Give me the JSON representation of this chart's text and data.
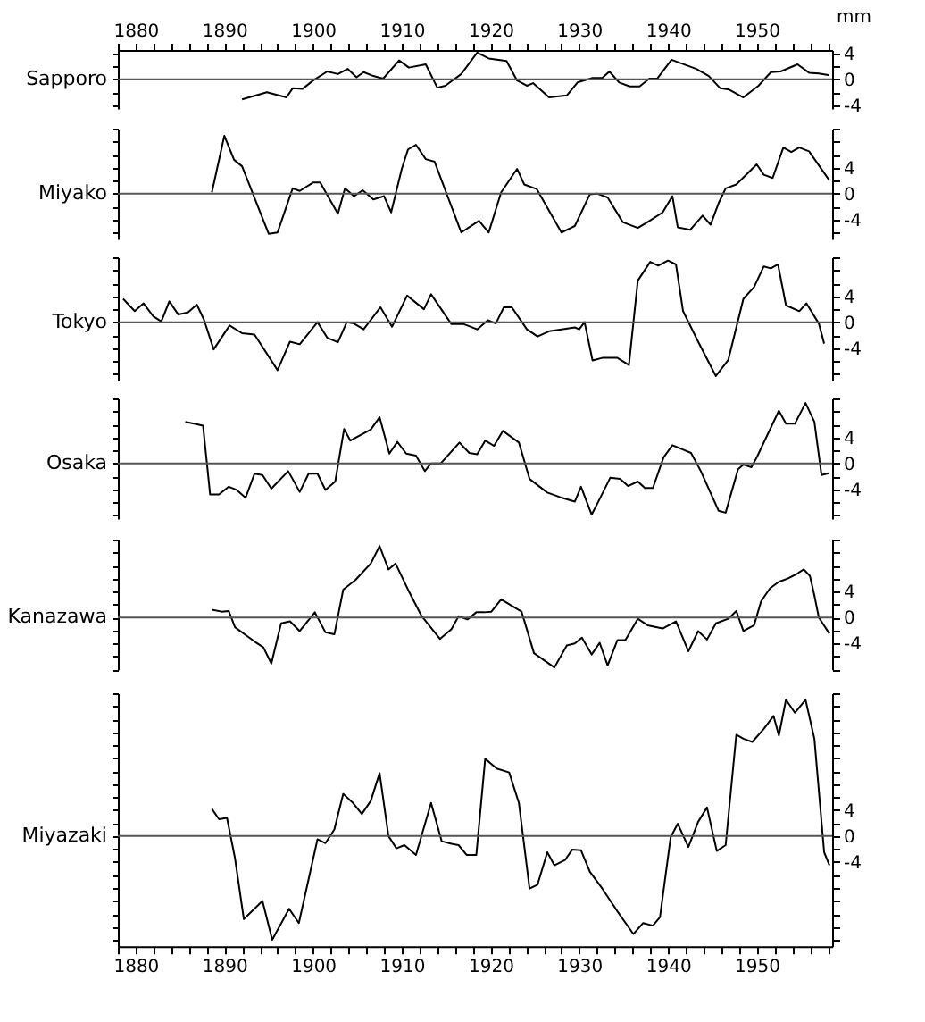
{
  "chart_data": [
    {
      "type": "line",
      "ylabel": "mm",
      "xlim": [
        1878,
        1958.5
      ],
      "x2lim": [
        1878,
        1958.5
      ],
      "x2ticks": [
        {
          "value": 1878,
          "label": null
        },
        1880,
        {
          "value": 1882,
          "label": null
        },
        {
          "value": 1884,
          "label": null
        },
        {
          "value": 1886,
          "label": null
        },
        {
          "value": 1888,
          "label": null
        },
        1890,
        {
          "value": 1892,
          "label": null
        },
        {
          "value": 1894,
          "label": null
        },
        {
          "value": 1896,
          "label": null
        },
        {
          "value": 1898,
          "label": null
        },
        1900,
        {
          "value": 1902,
          "label": null
        },
        {
          "value": 1904,
          "label": null
        },
        {
          "value": 1906,
          "label": null
        },
        {
          "value": 1908,
          "label": null
        },
        1910,
        {
          "value": 1912,
          "label": null
        },
        {
          "value": 1914,
          "label": null
        },
        {
          "value": 1916,
          "label": null
        },
        {
          "value": 1918,
          "label": null
        },
        1920,
        {
          "value": 1922,
          "label": null
        },
        {
          "value": 1924,
          "label": null
        },
        {
          "value": 1926,
          "label": null
        },
        {
          "value": 1928,
          "label": null
        },
        1930,
        {
          "value": 1932,
          "label": null
        },
        {
          "value": 1934,
          "label": null
        },
        {
          "value": 1936,
          "label": null
        },
        {
          "value": 1938,
          "label": null
        },
        1940,
        {
          "value": 1942,
          "label": null
        },
        {
          "value": 1944,
          "label": null
        },
        {
          "value": 1946,
          "label": null
        },
        {
          "value": 1948,
          "label": null
        },
        1950,
        {
          "value": 1952,
          "label": null
        },
        {
          "value": 1954,
          "label": null
        },
        {
          "value": 1956,
          "label": null
        },
        {
          "value": 1958,
          "label": null
        }
      ],
      "tick_labels": "y",
      "ylim": [
        -4.5,
        4.5
      ],
      "yticks": [
        4,
        {
          "value": 2,
          "label": null
        },
        0,
        {
          "value": -2,
          "label": null
        },
        -4
      ],
      "ref_lines": [
        {
          "axis": "y",
          "value": 0,
          "color": "#555555"
        }
      ],
      "series": [
        {
          "name": "Sapporo",
          "color": "#000000",
          "x": [
            1892,
            1894.8,
            1897,
            1897.7,
            1898.8,
            1900,
            1901.6,
            1902.8,
            1903.9,
            1904.9,
            1905.7,
            1906.8,
            1907.9,
            1909.7,
            1910.8,
            1912.7,
            1914,
            1914.9,
            1916.7,
            1918.5,
            1919.8,
            1921.8,
            1923,
            1924.1,
            1924.8,
            1926.6,
            1928.6,
            1929.8,
            1931.5,
            1932.6,
            1933.4,
            1934.5,
            1935.7,
            1936.8,
            1937.9,
            1938.8,
            1940.4,
            1943.2,
            1944.6,
            1945.9,
            1946.9,
            1948.5,
            1950.2,
            1951.6,
            1952.7,
            1954.6,
            1955.9,
            1957,
            1958.2
          ],
          "values": [
            -3.1,
            -2,
            -2.8,
            -1.4,
            -1.5,
            -0.2,
            1.2,
            0.8,
            1.6,
            0.3,
            1.1,
            0.5,
            0.1,
            2.9,
            1.8,
            2.3,
            -1.3,
            -1,
            0.8,
            4.1,
            3.2,
            2.8,
            -0.2,
            -1,
            -0.6,
            -2.8,
            -2.5,
            -0.5,
            0.2,
            0.2,
            1.2,
            -0.5,
            -1.1,
            -1.1,
            0.1,
            0.1,
            3,
            1.6,
            0.5,
            -1.4,
            -1.6,
            -2.8,
            -1,
            1.1,
            1.2,
            2.3,
            1,
            0.9,
            0.6
          ]
        }
      ]
    },
    {
      "type": "line",
      "xlim": [
        1878,
        1958.5
      ],
      "tick_labels": "y",
      "ylim": [
        -7,
        10
      ],
      "yticks": [
        {
          "value": 10,
          "label": null
        },
        {
          "value": 8,
          "label": null
        },
        {
          "value": 6,
          "label": null
        },
        4,
        {
          "value": 2,
          "label": null
        },
        0,
        {
          "value": -2,
          "label": null
        },
        -4,
        {
          "value": -6,
          "label": null
        }
      ],
      "ref_lines": [
        {
          "axis": "y",
          "value": 0,
          "color": "#555555"
        }
      ],
      "series": [
        {
          "name": "Miyako",
          "color": "#000000",
          "x": [
            1888.6,
            1890,
            1891.1,
            1892,
            1895,
            1896,
            1897.7,
            1898.5,
            1900,
            1900.8,
            1902.8,
            1903.6,
            1904.6,
            1905.6,
            1906.8,
            1908,
            1908.8,
            1910,
            1910.7,
            1911.6,
            1912.7,
            1913.7,
            1916.7,
            1918.7,
            1919.8,
            1921.2,
            1923,
            1923.8,
            1925.2,
            1928,
            1929.5,
            1931.2,
            1932,
            1933.2,
            1934.9,
            1936.6,
            1937.7,
            1939.4,
            1940.5,
            1941.1,
            1942.5,
            1943.9,
            1944.8,
            1945.7,
            1946.5,
            1947.7,
            1950,
            1950.8,
            1951.8,
            1953,
            1953.9,
            1954.8,
            1955.9,
            1958.2
          ],
          "values": [
            0.2,
            8.9,
            5.2,
            4.2,
            -6.2,
            -6,
            0.8,
            0.4,
            1.7,
            1.7,
            -3.1,
            0.8,
            -0.4,
            0.5,
            -0.9,
            -0.4,
            -2.9,
            3.8,
            6.8,
            7.5,
            5.3,
            4.9,
            -6,
            -4.2,
            -6,
            0.2,
            3.8,
            1.4,
            0.7,
            -6,
            -5,
            -0.1,
            0,
            -0.6,
            -4.4,
            -5.3,
            -4.4,
            -2.9,
            -0.4,
            -5.2,
            -5.6,
            -3.4,
            -4.8,
            -1.5,
            0.8,
            1.4,
            4.5,
            2.9,
            2.4,
            7.1,
            6.4,
            7.1,
            6.5,
            2
          ]
        }
      ]
    },
    {
      "type": "line",
      "xlim": [
        1878,
        1958.5
      ],
      "tick_labels": "y",
      "ylim": [
        -9,
        10
      ],
      "yticks": [
        {
          "value": 10,
          "label": null
        },
        {
          "value": 8,
          "label": null
        },
        {
          "value": 6,
          "label": null
        },
        4,
        {
          "value": 2,
          "label": null
        },
        0,
        {
          "value": -2,
          "label": null
        },
        -4,
        {
          "value": -6,
          "label": null
        },
        {
          "value": -8,
          "label": null
        }
      ],
      "ref_lines": [
        {
          "axis": "y",
          "value": 0,
          "color": "#555555"
        }
      ],
      "series": [
        {
          "name": "Tokyo",
          "color": "#000000",
          "x": [
            1878.6,
            1879.9,
            1880.9,
            1882,
            1882.9,
            1883.8,
            1884.8,
            1885.9,
            1886.9,
            1887.7,
            1888.8,
            1890.6,
            1892,
            1893.4,
            1896,
            1897.4,
            1898.5,
            1900.5,
            1901.6,
            1902.8,
            1903.8,
            1904.6,
            1905.7,
            1907.6,
            1908.9,
            1910.6,
            1912.5,
            1913.3,
            1915.6,
            1917,
            1918.5,
            1919.7,
            1920.6,
            1921.5,
            1922.4,
            1924.1,
            1925.3,
            1926.6,
            1928,
            1929.5,
            1930,
            1930.6,
            1931.5,
            1932.6,
            1934.3,
            1935.6,
            1936.6,
            1938,
            1938.9,
            1940,
            1940.9,
            1941.7,
            1943.4,
            1945.4,
            1946.8,
            1948.5,
            1949.7,
            1950.8,
            1951.6,
            1952.4,
            1953.3,
            1954.8,
            1955.6,
            1957,
            1957.6
          ],
          "values": [
            3.6,
            1.7,
            2.9,
            0.9,
            0.1,
            3.2,
            1.2,
            1.5,
            2.7,
            0.4,
            -4.2,
            -0.5,
            -1.7,
            -1.9,
            -7.4,
            -3,
            -3.4,
            0,
            -2.4,
            -3.1,
            0,
            -0.2,
            -1.1,
            2.3,
            -0.7,
            4.1,
            2,
            4.3,
            -0.3,
            -0.3,
            -1.1,
            0.3,
            -0.2,
            2.3,
            2.3,
            -1.1,
            -2.2,
            -1.4,
            -1.1,
            -0.8,
            -1.1,
            0,
            -5.9,
            -5.5,
            -5.5,
            -6.6,
            6.4,
            9.3,
            8.7,
            9.5,
            8.9,
            1.7,
            -3,
            -8.3,
            -5.8,
            3.6,
            5.4,
            8.6,
            8.3,
            8.9,
            2.6,
            1.7,
            2.9,
            -0.2,
            -3.3
          ]
        }
      ]
    },
    {
      "type": "line",
      "xlim": [
        1878,
        1958.5
      ],
      "tick_labels": "y",
      "ylim": [
        -8.5,
        10
      ],
      "yticks": [
        {
          "value": 10,
          "label": null
        },
        {
          "value": 8,
          "label": null
        },
        {
          "value": 6,
          "label": null
        },
        4,
        {
          "value": 2,
          "label": null
        },
        0,
        {
          "value": -2,
          "label": null
        },
        -4,
        {
          "value": -6,
          "label": null
        },
        {
          "value": -8,
          "label": null
        }
      ],
      "ref_lines": [
        {
          "axis": "y",
          "value": 0,
          "color": "#555555"
        }
      ],
      "series": [
        {
          "name": "Osaka",
          "color": "#000000",
          "x": [
            1885.6,
            1886.6,
            1887.6,
            1888.4,
            1889.4,
            1890.5,
            1891.4,
            1892.4,
            1893.4,
            1894.3,
            1895.3,
            1897.2,
            1898.5,
            1899.5,
            1900.5,
            1901.4,
            1902.5,
            1903.5,
            1904.2,
            1906.5,
            1907.5,
            1908.6,
            1909.5,
            1910.5,
            1911.6,
            1912.6,
            1913.3,
            1914.4,
            1916.5,
            1917.6,
            1918.5,
            1919.4,
            1920.4,
            1921.4,
            1923.2,
            1924.4,
            1926.4,
            1927.8,
            1929.5,
            1930.2,
            1931.4,
            1932.3,
            1933.5,
            1934.6,
            1935.5,
            1936.6,
            1937.4,
            1938.3,
            1939.5,
            1940.5,
            1942.6,
            1943.7,
            1945.7,
            1946.5,
            1947.9,
            1948.5,
            1949.4,
            1950,
            1952.5,
            1953.3,
            1954.3,
            1955.5,
            1956.5,
            1957.3,
            1958.2
          ],
          "values": [
            6.4,
            6.1,
            5.8,
            -4.8,
            -4.8,
            -3.6,
            -4.1,
            -5.3,
            -1.6,
            -1.8,
            -3.9,
            -1.2,
            -4.4,
            -1.6,
            -1.6,
            -4.1,
            -2.8,
            5.3,
            3.5,
            5.2,
            7.1,
            1.5,
            3.3,
            1.5,
            1.2,
            -1.2,
            0,
            0,
            3.2,
            1.6,
            1.4,
            3.5,
            2.7,
            5,
            3.2,
            -2.4,
            -4.5,
            -5.2,
            -5.9,
            -3.6,
            -7.9,
            -5.5,
            -2.2,
            -2.4,
            -3.5,
            -2.8,
            -3.8,
            -3.8,
            0.9,
            2.8,
            1.6,
            -1.2,
            -7.3,
            -7.6,
            -0.9,
            -0.2,
            -0.6,
            0.9,
            8.1,
            6.1,
            6.1,
            9.3,
            6.4,
            -1.8,
            -1.5
          ]
        }
      ]
    },
    {
      "type": "line",
      "xlim": [
        1878,
        1958.5
      ],
      "tick_labels": "y",
      "ylim": [
        -8,
        12
      ],
      "yticks": [
        {
          "value": 12,
          "label": null
        },
        {
          "value": 10,
          "label": null
        },
        {
          "value": 8,
          "label": null
        },
        {
          "value": 6,
          "label": null
        },
        4,
        {
          "value": 2,
          "label": null
        },
        0,
        {
          "value": -2,
          "label": null
        },
        -4,
        {
          "value": -6,
          "label": null
        },
        {
          "value": -8,
          "label": null
        }
      ],
      "ref_lines": [
        {
          "axis": "y",
          "value": 0,
          "color": "#555555"
        }
      ],
      "series": [
        {
          "name": "Kanazawa",
          "color": "#000000",
          "x": [
            1888.6,
            1889.7,
            1890.5,
            1891.2,
            1893.4,
            1894.4,
            1895.3,
            1896.4,
            1897.4,
            1898.5,
            1900.2,
            1901.4,
            1902.4,
            1903.4,
            1904.8,
            1906.5,
            1907.5,
            1908.5,
            1909.3,
            1910.7,
            1912.2,
            1914.3,
            1915.6,
            1916.4,
            1917.4,
            1918.4,
            1919.3,
            1920.1,
            1921.2,
            1922.4,
            1923.5,
            1924.9,
            1927.2,
            1928.6,
            1929.5,
            1930.3,
            1931.4,
            1932.3,
            1933.2,
            1934.3,
            1935.2,
            1936.6,
            1937.7,
            1939.4,
            1940.9,
            1942.3,
            1943.4,
            1944.4,
            1945.4,
            1946.8,
            1947.7,
            1948.5,
            1949.7,
            1950.5,
            1951.5,
            1952.5,
            1953.5,
            1954.5,
            1955.3,
            1956,
            1956.5,
            1957,
            1958.2
          ],
          "values": [
            1.2,
            0.9,
            1,
            -1.5,
            -3.7,
            -4.6,
            -7.1,
            -0.9,
            -0.6,
            -2.1,
            0.8,
            -2.3,
            -2.6,
            4.3,
            5.8,
            8.3,
            11,
            7.4,
            8.3,
            4.3,
            0.3,
            -3.3,
            -1.8,
            0.2,
            -0.3,
            0.8,
            0.8,
            0.9,
            2.8,
            1.8,
            0.9,
            -5.5,
            -7.7,
            -4.3,
            -4,
            -3.1,
            -5.7,
            -3.9,
            -7.4,
            -3.5,
            -3.5,
            -0.2,
            -1.2,
            -1.7,
            -0.6,
            -5.2,
            -2.1,
            -3.4,
            -0.9,
            -0.2,
            1,
            -2.1,
            -1.2,
            2.5,
            4.5,
            5.5,
            6,
            6.7,
            7.4,
            6.4,
            3.4,
            0,
            -2.5
          ]
        }
      ]
    },
    {
      "type": "line",
      "xlim": [
        1878,
        1958.5
      ],
      "xticks": [
        {
          "value": 1878,
          "label": null
        },
        1880,
        {
          "value": 1882,
          "label": null
        },
        {
          "value": 1884,
          "label": null
        },
        {
          "value": 1886,
          "label": null
        },
        {
          "value": 1888,
          "label": null
        },
        1890,
        {
          "value": 1892,
          "label": null
        },
        {
          "value": 1894,
          "label": null
        },
        {
          "value": 1896,
          "label": null
        },
        {
          "value": 1898,
          "label": null
        },
        1900,
        {
          "value": 1902,
          "label": null
        },
        {
          "value": 1904,
          "label": null
        },
        {
          "value": 1906,
          "label": null
        },
        {
          "value": 1908,
          "label": null
        },
        1910,
        {
          "value": 1912,
          "label": null
        },
        {
          "value": 1914,
          "label": null
        },
        {
          "value": 1916,
          "label": null
        },
        {
          "value": 1918,
          "label": null
        },
        1920,
        {
          "value": 1922,
          "label": null
        },
        {
          "value": 1924,
          "label": null
        },
        {
          "value": 1926,
          "label": null
        },
        {
          "value": 1928,
          "label": null
        },
        1930,
        {
          "value": 1932,
          "label": null
        },
        {
          "value": 1934,
          "label": null
        },
        {
          "value": 1936,
          "label": null
        },
        {
          "value": 1938,
          "label": null
        },
        1940,
        {
          "value": 1942,
          "label": null
        },
        {
          "value": 1944,
          "label": null
        },
        {
          "value": 1946,
          "label": null
        },
        {
          "value": 1948,
          "label": null
        },
        1950,
        {
          "value": 1952,
          "label": null
        },
        {
          "value": 1954,
          "label": null
        },
        {
          "value": 1956,
          "label": null
        },
        {
          "value": 1958,
          "label": null
        }
      ],
      "ylim": [
        -17,
        22
      ],
      "yticks": [
        {
          "value": 22,
          "label": null
        },
        {
          "value": 20,
          "label": null
        },
        {
          "value": 18,
          "label": null
        },
        {
          "value": 16,
          "label": null
        },
        {
          "value": 14,
          "label": null
        },
        {
          "value": 12,
          "label": null
        },
        {
          "value": 10,
          "label": null
        },
        {
          "value": 8,
          "label": null
        },
        {
          "value": 6,
          "label": null
        },
        4,
        {
          "value": 2,
          "label": null
        },
        0,
        {
          "value": -2,
          "label": null
        },
        -4,
        {
          "value": -6,
          "label": null
        },
        {
          "value": -8,
          "label": null
        },
        {
          "value": -10,
          "label": null
        },
        {
          "value": -12,
          "label": null
        },
        {
          "value": -14,
          "label": null
        },
        {
          "value": -16,
          "label": null
        }
      ],
      "ref_lines": [
        {
          "axis": "y",
          "value": 0,
          "color": "#555555"
        }
      ],
      "series": [
        {
          "name": "Miyazaki",
          "color": "#000000",
          "x": [
            1888.6,
            1889.4,
            1890.3,
            1891.2,
            1892.2,
            1894.3,
            1895.4,
            1897.3,
            1898.4,
            1900.5,
            1901.4,
            1902.4,
            1903.4,
            1904.5,
            1905.5,
            1906.5,
            1907.5,
            1908.5,
            1909.4,
            1910.3,
            1911.6,
            1913.3,
            1914.5,
            1915.6,
            1916.4,
            1917.3,
            1918.4,
            1919.4,
            1920.7,
            1922.1,
            1923.2,
            1924.4,
            1925.3,
            1926.4,
            1927.2,
            1928.4,
            1929.2,
            1930.2,
            1931.2,
            1932.6,
            1934.3,
            1936.1,
            1937.2,
            1938.3,
            1939.1,
            1940.3,
            1941.1,
            1942.3,
            1943.4,
            1944.4,
            1945.5,
            1946.5,
            1947.7,
            1948.5,
            1949.5,
            1950.8,
            1951.9,
            1952.5,
            1953.3,
            1954.3,
            1955.5,
            1956.5,
            1957.6,
            1958.2
          ],
          "values": [
            4.2,
            2.6,
            2.8,
            -3.4,
            -12.8,
            -10,
            -16,
            -11.2,
            -13.4,
            -0.5,
            -1.1,
            1,
            6.5,
            5.1,
            3.4,
            5.4,
            9.7,
            0,
            -1.9,
            -1.4,
            -2.9,
            5.1,
            -0.8,
            -1.2,
            -1.4,
            -2.9,
            -2.9,
            11.9,
            10.4,
            9.8,
            5.1,
            -8.1,
            -7.5,
            -2.5,
            -4.5,
            -3.7,
            -2.1,
            -2.2,
            -5.5,
            -8.1,
            -11.6,
            -15.1,
            -13.4,
            -13.8,
            -12.5,
            -0.2,
            1.9,
            -1.7,
            2.2,
            4.4,
            -2.3,
            -1.4,
            15.6,
            15,
            14.5,
            16.5,
            18.5,
            15.5,
            21,
            19,
            21,
            15,
            -2.5,
            -4.5
          ]
        }
      ]
    }
  ]
}
